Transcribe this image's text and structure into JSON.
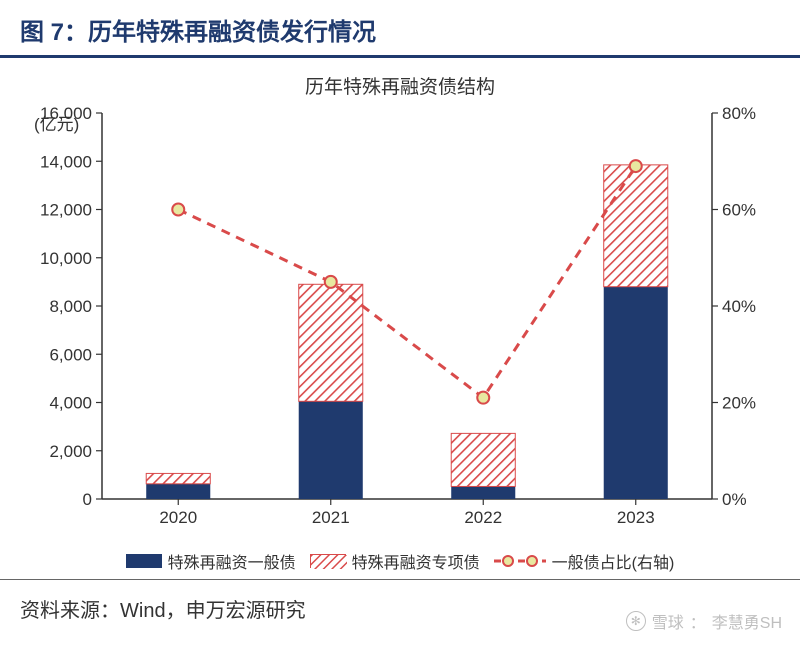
{
  "header": {
    "title": "图 7：历年特殊再融资债发行情况"
  },
  "chart": {
    "type": "bar+line",
    "title": "历年特殊再融资债结构",
    "unit_label": "(亿元)",
    "categories": [
      "2020",
      "2021",
      "2022",
      "2023"
    ],
    "left_axis": {
      "min": 0,
      "max": 16000,
      "step": 2000,
      "ticks": [
        "0",
        "2,000",
        "4,000",
        "6,000",
        "8,000",
        "10,000",
        "12,000",
        "14,000",
        "16,000"
      ]
    },
    "right_axis": {
      "min": 0,
      "max": 0.8,
      "step": 0.2,
      "ticks": [
        "0%",
        "20%",
        "40%",
        "60%",
        "80%"
      ]
    },
    "series": {
      "general_debt": {
        "label": "特殊再融资一般债",
        "values": [
          630,
          4050,
          520,
          8800
        ],
        "color": "#1f3a6e"
      },
      "special_debt": {
        "label": "特殊再融资专项债",
        "values": [
          430,
          4850,
          2200,
          5050
        ],
        "color": "#d94a4a",
        "pattern": "diagonal-hatch"
      },
      "ratio_line": {
        "label": "一般债占比(右轴)",
        "values": [
          0.6,
          0.45,
          0.21,
          0.69
        ],
        "color": "#d94a4a",
        "marker": "ring",
        "marker_fill": "#e8e8a0",
        "dash": "9,7",
        "line_width": 3
      }
    },
    "bar_width_ratio": 0.42,
    "plot": {
      "background": "#ffffff",
      "axis_color": "#333333",
      "tick_font_size": 17,
      "grid": false
    }
  },
  "legend": {
    "items": [
      {
        "key": "general",
        "label": "特殊再融资一般债"
      },
      {
        "key": "special",
        "label": "特殊再融资专项债"
      },
      {
        "key": "ratio",
        "label": "一般债占比(右轴)"
      }
    ]
  },
  "footer": {
    "source": "资料来源：Wind，申万宏源研究"
  },
  "watermark": {
    "brand": "雪球",
    "author": "李慧勇SH"
  }
}
